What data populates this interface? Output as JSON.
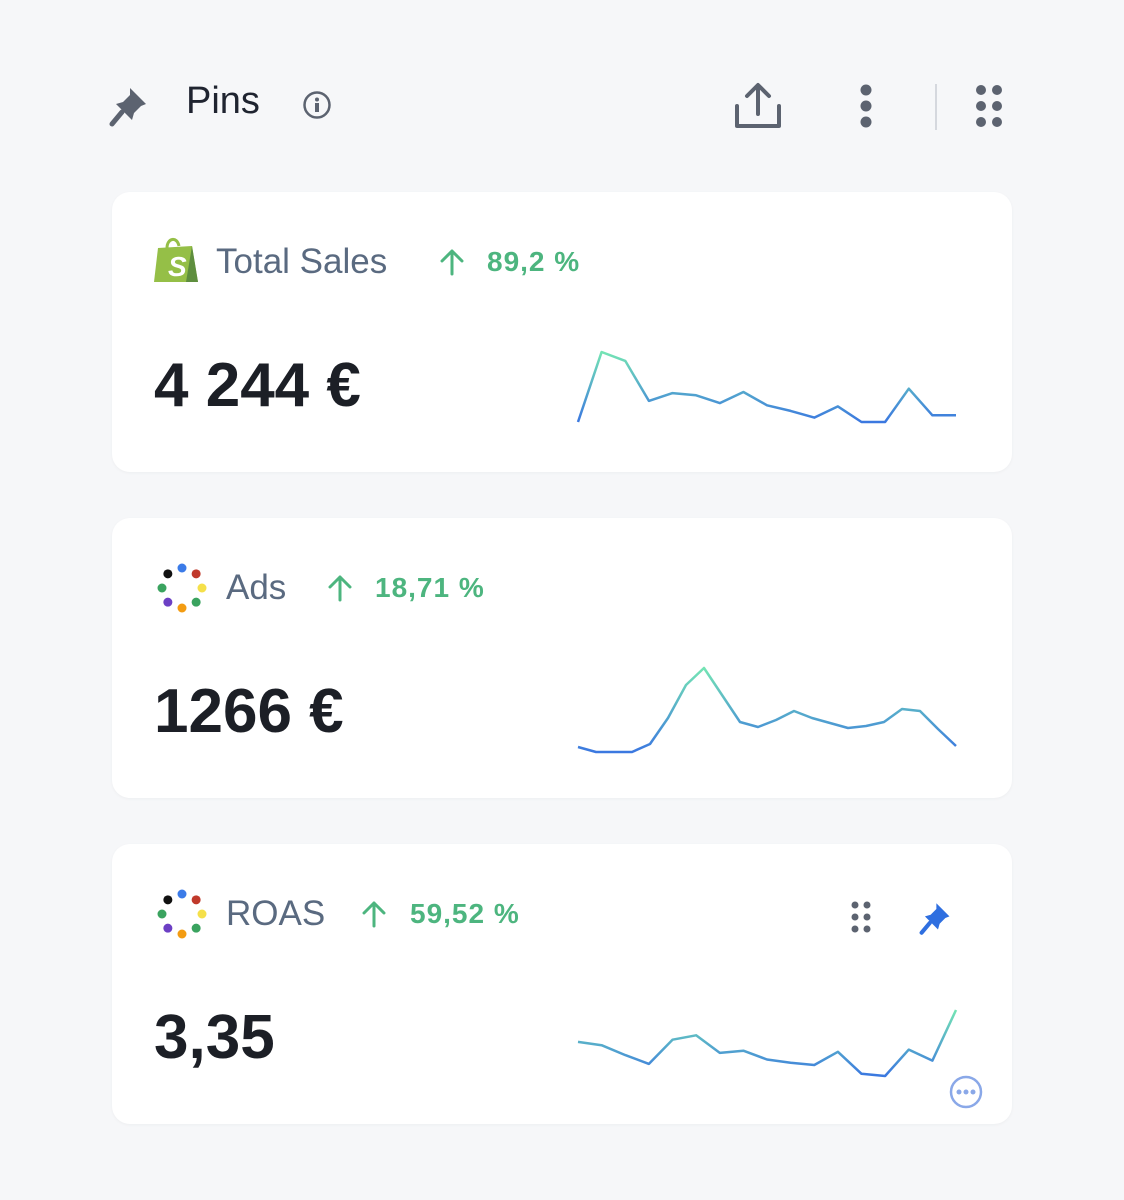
{
  "header": {
    "title": "Pins"
  },
  "cards": [
    {
      "title": "Total Sales",
      "change": "89,2 %",
      "value": "4 244 €",
      "sparkline": [
        10,
        73,
        65,
        29,
        36,
        34,
        27,
        37,
        25,
        20,
        14,
        24,
        10,
        10,
        40,
        16,
        16
      ]
    },
    {
      "title": "Ads",
      "change": "18,71 %",
      "value": "1266 €",
      "sparkline": [
        13,
        8,
        8,
        8,
        16,
        42,
        75,
        92,
        65,
        38,
        33,
        40,
        49,
        42,
        37,
        32,
        34,
        38,
        51,
        49,
        31,
        14
      ]
    },
    {
      "title": "ROAS",
      "change": "59,52 %",
      "value": "3,35",
      "sparkline": [
        38,
        35,
        26,
        18,
        40,
        44,
        28,
        30,
        22,
        19,
        17,
        29,
        9,
        7,
        31,
        21,
        67
      ]
    }
  ]
}
